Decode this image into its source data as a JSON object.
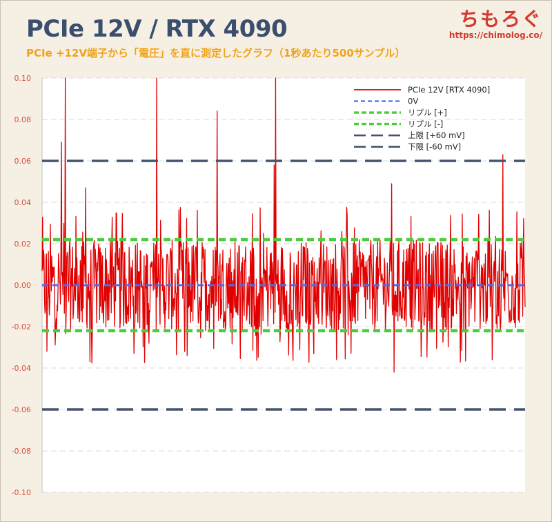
{
  "header": {
    "title": "PCIe 12V / RTX 4090",
    "subtitle": "PCIe +12V端子から「電圧」を直に測定したグラフ（1秒あたり500サンプル）",
    "brand_logo": "ちもろぐ",
    "brand_url": "https://chimolog.co/"
  },
  "colors": {
    "background": "#f6f0e4",
    "title": "#3a4f6e",
    "subtitle": "#f0a21a",
    "brand": "#d33a2f",
    "signal": "#e00000",
    "zero_line": "#4a6cf0",
    "ripple": "#4ccc3a",
    "limit": "#44546a",
    "tick_label": "#d84c3c",
    "grid": "#d9d9d9"
  },
  "chart_data": {
    "type": "line",
    "title": "PCIe 12V / RTX 4090",
    "ylim": [
      -0.1,
      0.1
    ],
    "yticks": [
      "0.10",
      "0.08",
      "0.06",
      "0.04",
      "0.02",
      "0.00",
      "-0.02",
      "-0.04",
      "-0.06",
      "-0.08",
      "-0.10"
    ],
    "grid": true,
    "legend_position": "top-right",
    "sample_count": 1000,
    "signal": {
      "name": "PCIe 12V [RTX 4090]",
      "base_min": -0.022,
      "base_max": 0.022,
      "spikes": [
        {
          "x": 0.048,
          "y": 0.1
        },
        {
          "x": 0.04,
          "y": 0.069
        },
        {
          "x": 0.237,
          "y": 0.1
        },
        {
          "x": 0.362,
          "y": 0.084
        },
        {
          "x": 0.483,
          "y": 0.1
        },
        {
          "x": 0.48,
          "y": 0.058
        },
        {
          "x": 0.954,
          "y": 0.063
        },
        {
          "x": 0.724,
          "y": 0.049
        },
        {
          "x": 0.09,
          "y": 0.047
        },
        {
          "x": 0.729,
          "y": -0.042
        },
        {
          "x": 0.932,
          "y": -0.036
        },
        {
          "x": 0.3,
          "y": -0.034
        },
        {
          "x": 0.19,
          "y": -0.033
        },
        {
          "x": 0.01,
          "y": -0.032
        },
        {
          "x": 0.64,
          "y": -0.033
        }
      ]
    },
    "reference_lines": [
      {
        "name": "0V",
        "y": 0.0,
        "style": "blue-dash"
      },
      {
        "name": "リプル [+]",
        "y": 0.022,
        "style": "green-dash"
      },
      {
        "name": "リプル [-]",
        "y": -0.022,
        "style": "green-dash"
      },
      {
        "name": "上限 [+60 mV]",
        "y": 0.06,
        "style": "navy-longdash"
      },
      {
        "name": "下限 [-60 mV]",
        "y": -0.06,
        "style": "navy-longdash"
      }
    ]
  }
}
